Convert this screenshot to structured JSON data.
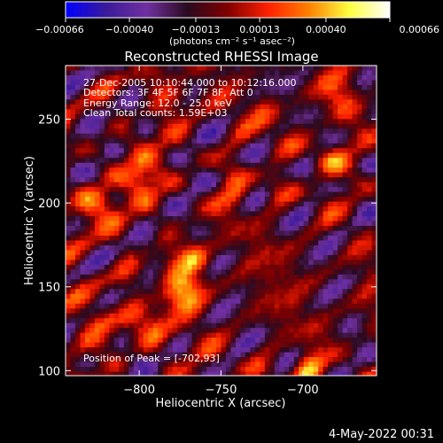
{
  "chart_data": {
    "type": "heatmap",
    "title": "Reconstructed RHESSI Image",
    "xlabel": "Heliocentric X (arcsec)",
    "ylabel": "Heliocentric Y (arcsec)",
    "xlim": [
      -845,
      -655
    ],
    "ylim": [
      97,
      282
    ],
    "x_ticks": [
      -800,
      -750,
      -700
    ],
    "x_tick_labels": [
      "−800",
      "−750",
      "−700"
    ],
    "y_ticks": [
      100,
      150,
      200,
      250
    ],
    "y_tick_labels": [
      "100",
      "150",
      "200",
      "250"
    ],
    "colorbar": {
      "min": -0.00066,
      "max": 0.00066,
      "ticks": [
        -0.00066,
        -0.0004,
        -0.00013,
        0.00013,
        0.0004,
        0.00066
      ],
      "tick_labels": [
        "−0.00066",
        "−0.00040",
        "−0.00013",
        "0.00013",
        "0.00040",
        "0.00066"
      ],
      "unit_label": "(photons cm⁻² s⁻¹ asec⁻²)",
      "colormap": [
        "#0000ff",
        "#3a1a9a",
        "#7030a0",
        "#2a0a20",
        "#800000",
        "#ff2000",
        "#ff8000",
        "#ffff40",
        "#ffffff"
      ]
    },
    "annotations": [
      "27-Dec-2005 10:10:44.000 to 10:12:16.000",
      "Detectors: 3F 4F 5F 6F 7F 8F, Att 0",
      "Energy Range: 12.0 - 25.0 keV",
      "Clean     Total counts: 1.59E+03"
    ],
    "peak_label": "Position of Peak = [-702,93]",
    "timestamp": "4-May-2022 00:31",
    "grid": false,
    "legend": "colorbar-top"
  }
}
